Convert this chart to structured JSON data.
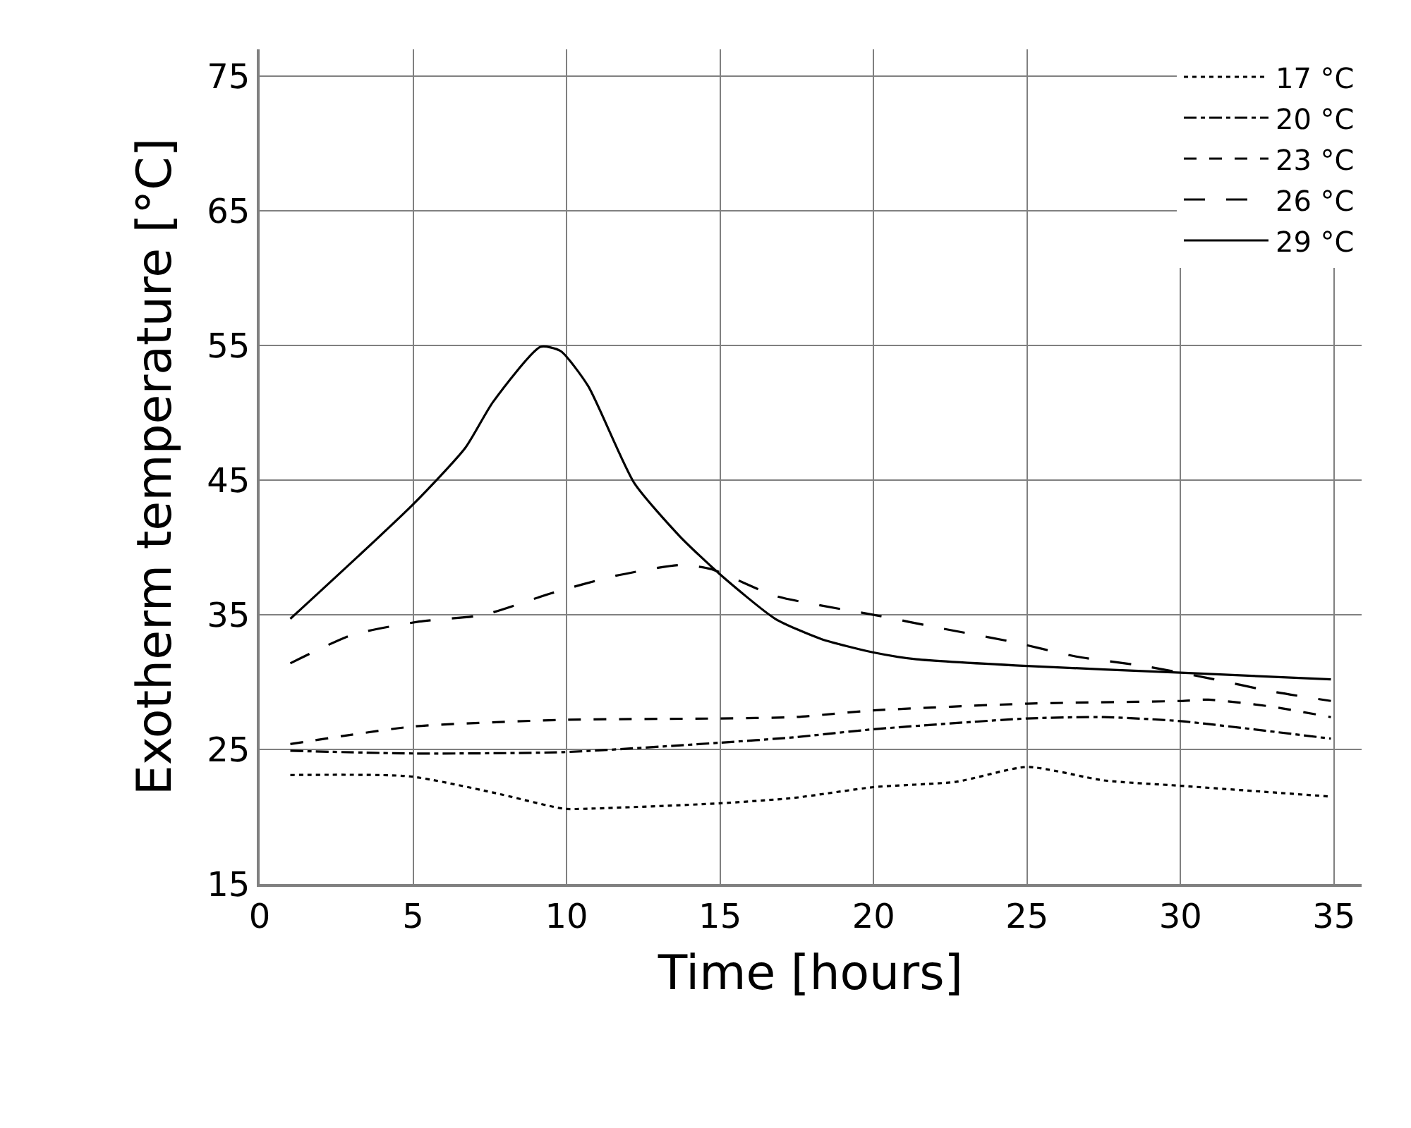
{
  "chart_data": {
    "type": "line",
    "xlabel": "Time [hours]",
    "ylabel": "Exotherm temperature [°C]",
    "xlim": [
      0,
      35.9
    ],
    "xticks": [
      0,
      5,
      10,
      15,
      20,
      25,
      30,
      35
    ],
    "ylim": [
      15,
      77
    ],
    "yticks": [
      15,
      25,
      35,
      45,
      55,
      65,
      75
    ],
    "grid": true,
    "legend": "top right",
    "series": [
      {
        "name": "17 °C",
        "color": "#000000",
        "line_style": "dotted",
        "x": [
          1,
          4.9,
          7.6,
          9.9,
          10.7,
          15,
          17.4,
          20,
          22.7,
          25,
          27.5,
          30,
          34.9
        ],
        "values": [
          23.1,
          23.0,
          21.8,
          20.6,
          20.6,
          21.0,
          21.4,
          22.2,
          22.6,
          23.7,
          22.7,
          22.3,
          21.5
        ]
      },
      {
        "name": "20 °C",
        "color": "#000000",
        "line_style": "dashdot",
        "x": [
          1,
          5,
          9.9,
          15,
          17.4,
          20,
          25,
          27.5,
          30,
          34.9
        ],
        "values": [
          24.9,
          24.7,
          24.8,
          25.5,
          25.9,
          26.5,
          27.3,
          27.4,
          27.1,
          25.8
        ]
      },
      {
        "name": "23 °C",
        "color": "#000000",
        "line_style": "dashed",
        "x": [
          1,
          5,
          9.9,
          15,
          17.4,
          20,
          25,
          30,
          30.9,
          32.9,
          34.9
        ],
        "values": [
          25.4,
          26.7,
          27.2,
          27.3,
          27.4,
          27.9,
          28.4,
          28.6,
          28.7,
          28.2,
          27.4
        ]
      },
      {
        "name": "26 °C",
        "color": "#000000",
        "line_style": "longdash",
        "x": [
          1,
          3,
          5.2,
          7.3,
          9.5,
          11.6,
          13.7,
          14.7,
          16.8,
          19,
          20,
          22.2,
          24.5,
          26.6,
          28.8,
          30.9,
          33,
          34.9
        ],
        "values": [
          31.4,
          33.5,
          34.5,
          35.0,
          36.6,
          37.9,
          38.7,
          38.4,
          36.4,
          35.4,
          35.0,
          34.0,
          33.0,
          31.9,
          31.2,
          30.3,
          29.3,
          28.6
        ]
      },
      {
        "name": "29 °C",
        "color": "#000000",
        "line_style": "solid",
        "x": [
          1,
          5,
          6.7,
          7.6,
          9.15,
          9.8,
          10.7,
          12.2,
          13.7,
          15,
          16.8,
          18.3,
          20,
          21.4,
          25,
          30,
          34.9
        ],
        "values": [
          34.7,
          43.2,
          47.4,
          50.8,
          54.9,
          54.6,
          52.0,
          44.8,
          40.8,
          38.0,
          34.7,
          33.2,
          32.2,
          31.7,
          31.2,
          30.7,
          30.2
        ]
      }
    ]
  }
}
